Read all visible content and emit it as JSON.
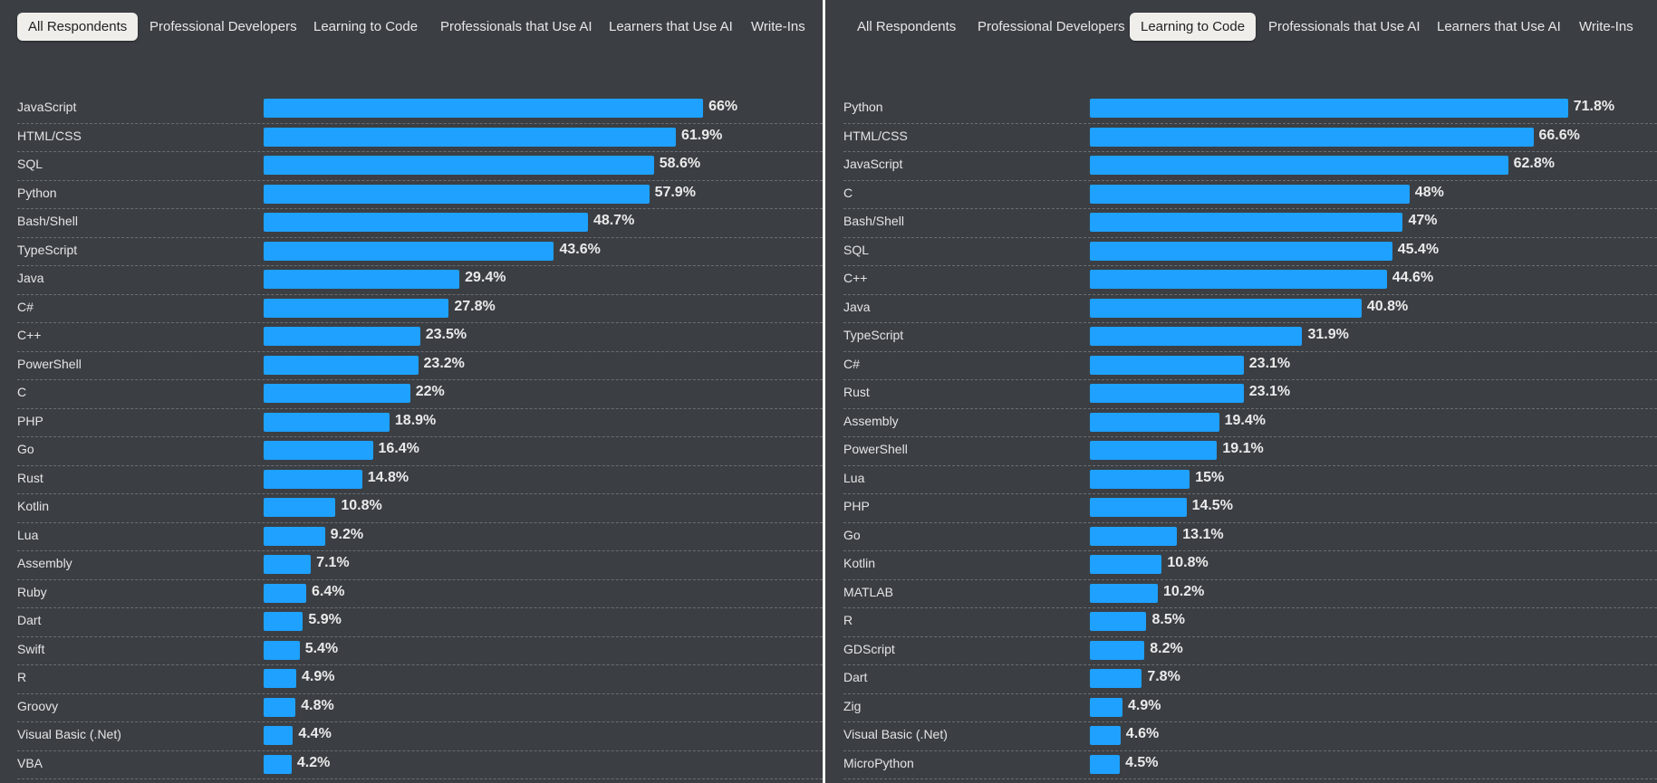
{
  "tabs": [
    "All Respondents",
    "Professional Developers",
    "Learning to Code",
    "Professionals that Use AI",
    "Learners that Use AI",
    "Write-Ins"
  ],
  "chart_data": [
    {
      "type": "bar",
      "orientation": "horizontal",
      "active_tab": "All Respondents",
      "bar_color": "#1ea1ff",
      "categories": [
        "JavaScript",
        "HTML/CSS",
        "SQL",
        "Python",
        "Bash/Shell",
        "TypeScript",
        "Java",
        "C#",
        "C++",
        "PowerShell",
        "C",
        "PHP",
        "Go",
        "Rust",
        "Kotlin",
        "Lua",
        "Assembly",
        "Ruby",
        "Dart",
        "Swift",
        "R",
        "Groovy",
        "Visual Basic (.Net)",
        "VBA"
      ],
      "values": [
        66,
        61.9,
        58.6,
        57.9,
        48.7,
        43.6,
        29.4,
        27.8,
        23.5,
        23.2,
        22,
        18.9,
        16.4,
        14.8,
        10.8,
        9.2,
        7.1,
        6.4,
        5.9,
        5.4,
        4.9,
        4.8,
        4.4,
        4.2
      ],
      "value_labels": [
        "66%",
        "61.9%",
        "58.6%",
        "57.9%",
        "48.7%",
        "43.6%",
        "29.4%",
        "27.8%",
        "23.5%",
        "23.2%",
        "22%",
        "18.9%",
        "16.4%",
        "14.8%",
        "10.8%",
        "9.2%",
        "7.1%",
        "6.4%",
        "5.9%",
        "5.4%",
        "4.9%",
        "4.8%",
        "4.4%",
        "4.2%"
      ]
    },
    {
      "type": "bar",
      "orientation": "horizontal",
      "active_tab": "Learning to Code",
      "bar_color": "#1ea1ff",
      "categories": [
        "Python",
        "HTML/CSS",
        "JavaScript",
        "C",
        "Bash/Shell",
        "SQL",
        "C++",
        "Java",
        "TypeScript",
        "C#",
        "Rust",
        "Assembly",
        "PowerShell",
        "Lua",
        "PHP",
        "Go",
        "Kotlin",
        "MATLAB",
        "R",
        "GDScript",
        "Dart",
        "Zig",
        "Visual Basic (.Net)",
        "MicroPython"
      ],
      "values": [
        71.8,
        66.6,
        62.8,
        48,
        47,
        45.4,
        44.6,
        40.8,
        31.9,
        23.1,
        23.1,
        19.4,
        19.1,
        15,
        14.5,
        13.1,
        10.8,
        10.2,
        8.5,
        8.2,
        7.8,
        4.9,
        4.6,
        4.5
      ],
      "value_labels": [
        "71.8%",
        "66.6%",
        "62.8%",
        "48%",
        "47%",
        "45.4%",
        "44.6%",
        "40.8%",
        "31.9%",
        "23.1%",
        "23.1%",
        "19.4%",
        "19.1%",
        "15%",
        "14.5%",
        "13.1%",
        "10.8%",
        "10.2%",
        "8.5%",
        "8.2%",
        "7.8%",
        "4.9%",
        "4.6%",
        "4.5%"
      ]
    }
  ]
}
